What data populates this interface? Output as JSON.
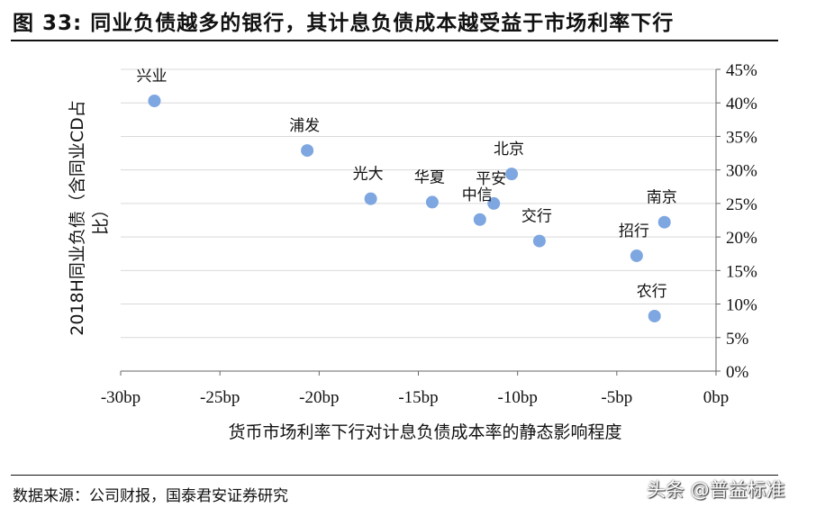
{
  "figure": {
    "title": "图 33: 同业负债越多的银行，其计息负债成本越受益于市场利率下行",
    "source": "数据来源：公司财报，国泰君安证券研究",
    "watermark": "头条 @普益标准"
  },
  "chart_data": {
    "type": "scatter",
    "xlabel": "货币市场利率下行对计息负债成本率的静态影响程度",
    "ylabel_line1": "2018H同业负债（含同业CD占",
    "ylabel_line2": "比）",
    "x_unit": "bp",
    "y_unit": "%",
    "xlim": [
      -30,
      0
    ],
    "ylim": [
      0,
      45
    ],
    "x_ticks": [
      -30,
      -25,
      -20,
      -15,
      -10,
      -5,
      0
    ],
    "x_tick_labels": [
      "-30bp",
      "-25bp",
      "-20bp",
      "-15bp",
      "-10bp",
      "-5bp",
      "0bp"
    ],
    "y_ticks": [
      0,
      5,
      10,
      15,
      20,
      25,
      30,
      35,
      40,
      45
    ],
    "y_tick_labels": [
      "0%",
      "5%",
      "10%",
      "15%",
      "20%",
      "25%",
      "30%",
      "35%",
      "40%",
      "45%"
    ],
    "grid": "horizontal",
    "marker_color": "#7ea6e0",
    "points": [
      {
        "label": "兴业",
        "x": -28.3,
        "y": 40.3
      },
      {
        "label": "浦发",
        "x": -20.6,
        "y": 32.9
      },
      {
        "label": "光大",
        "x": -17.4,
        "y": 25.7
      },
      {
        "label": "华夏",
        "x": -14.3,
        "y": 25.2
      },
      {
        "label": "中信",
        "x": -11.9,
        "y": 22.6
      },
      {
        "label": "平安",
        "x": -11.2,
        "y": 25.0
      },
      {
        "label": "北京",
        "x": -10.3,
        "y": 29.4
      },
      {
        "label": "交行",
        "x": -8.9,
        "y": 19.4
      },
      {
        "label": "南京",
        "x": -2.6,
        "y": 22.2
      },
      {
        "label": "招行",
        "x": -4.0,
        "y": 17.2
      },
      {
        "label": "农行",
        "x": -3.1,
        "y": 8.2
      }
    ]
  }
}
